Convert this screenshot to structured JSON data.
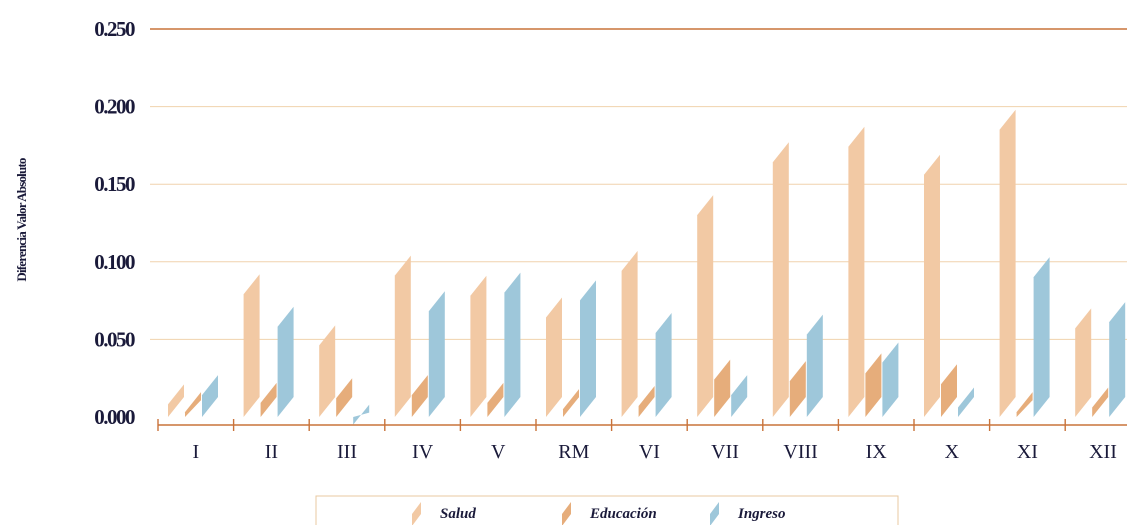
{
  "chart_data": {
    "type": "bar",
    "ylabel": "Diferencia Valor Absoluto",
    "xlabel": "",
    "ylim": [
      0,
      0.25
    ],
    "ytick_labels": [
      "0.000",
      "0.050",
      "0.100",
      "0.150",
      "0.200",
      "0.250"
    ],
    "categories": [
      "I",
      "II",
      "III",
      "IV",
      "V",
      "RM",
      "VI",
      "VII",
      "VIII",
      "IX",
      "X",
      "XI",
      "XII"
    ],
    "series": [
      {
        "name": "Salud",
        "color": "#f2c9a4",
        "values": [
          0.021,
          0.092,
          0.059,
          0.104,
          0.091,
          0.077,
          0.107,
          0.143,
          0.177,
          0.187,
          0.169,
          0.198,
          0.07
        ]
      },
      {
        "name": "Educación",
        "color": "#e6ad7b",
        "values": [
          0.016,
          0.022,
          0.025,
          0.027,
          0.022,
          0.018,
          0.02,
          0.037,
          0.036,
          0.041,
          0.034,
          0.016,
          0.019
        ]
      },
      {
        "name": "Ingreso",
        "color": "#9ec7da",
        "values": [
          0.027,
          0.071,
          0.008,
          0.081,
          0.093,
          0.088,
          0.067,
          0.027,
          0.066,
          0.048,
          0.019,
          0.103,
          0.074
        ]
      }
    ],
    "grid": true,
    "legend_position": "bottom"
  }
}
